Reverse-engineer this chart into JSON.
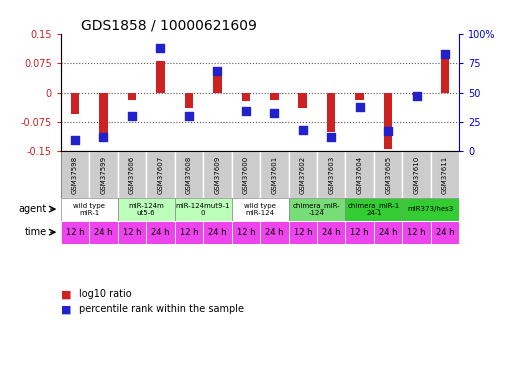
{
  "title": "GDS1858 / 10000621609",
  "samples": [
    "GSM37598",
    "GSM37599",
    "GSM37606",
    "GSM37607",
    "GSM37608",
    "GSM37609",
    "GSM37600",
    "GSM37601",
    "GSM37602",
    "GSM37603",
    "GSM37604",
    "GSM37605",
    "GSM37610",
    "GSM37611"
  ],
  "log10_ratio": [
    -0.055,
    -0.115,
    -0.018,
    0.08,
    -0.04,
    0.048,
    -0.022,
    -0.02,
    -0.04,
    -0.1,
    -0.018,
    -0.145,
    -0.005,
    0.09
  ],
  "pct_rank": [
    10,
    12,
    30,
    88,
    30,
    68,
    34,
    33,
    18,
    12,
    38,
    17,
    47,
    83
  ],
  "ylim_left": [
    -0.15,
    0.15
  ],
  "ylim_right": [
    0,
    100
  ],
  "yticks_left": [
    -0.15,
    -0.075,
    0,
    0.075,
    0.15
  ],
  "yticks_right": [
    0,
    25,
    50,
    75,
    100
  ],
  "ytick_labels_left": [
    "-0.15",
    "-0.075",
    "0",
    "0.075",
    "0.15"
  ],
  "ytick_labels_right": [
    "0",
    "25",
    "50",
    "75",
    "100%"
  ],
  "bar_color": "#cc2222",
  "dot_color": "#2222cc",
  "hgrid_values": [
    -0.075,
    0,
    0.075
  ],
  "agent_groups": [
    {
      "label": "wild type\nmiR-1",
      "cols": [
        0,
        1
      ],
      "color": "#ffffff"
    },
    {
      "label": "miR-124m\nut5-6",
      "cols": [
        2,
        3
      ],
      "color": "#bbffbb"
    },
    {
      "label": "miR-124mut9-1\n0",
      "cols": [
        4,
        5
      ],
      "color": "#bbffbb"
    },
    {
      "label": "wild type\nmiR-124",
      "cols": [
        6,
        7
      ],
      "color": "#ffffff"
    },
    {
      "label": "chimera_miR-\n-124",
      "cols": [
        8,
        9
      ],
      "color": "#77dd77"
    },
    {
      "label": "chimera_miR-1\n24-1",
      "cols": [
        10,
        11
      ],
      "color": "#33cc33"
    },
    {
      "label": "miR373/hes3",
      "cols": [
        12,
        13
      ],
      "color": "#33cc33"
    }
  ],
  "time_labels": [
    "12 h",
    "24 h",
    "12 h",
    "24 h",
    "12 h",
    "24 h",
    "12 h",
    "24 h",
    "12 h",
    "24 h",
    "12 h",
    "24 h",
    "12 h",
    "24 h"
  ],
  "time_color": "#ee44ee",
  "legend_bar_label": "log10 ratio",
  "legend_dot_label": "percentile rank within the sample",
  "bg_color": "#ffffff",
  "grid_color": "#555555",
  "sample_bg": "#cccccc",
  "border_color": "#888888"
}
